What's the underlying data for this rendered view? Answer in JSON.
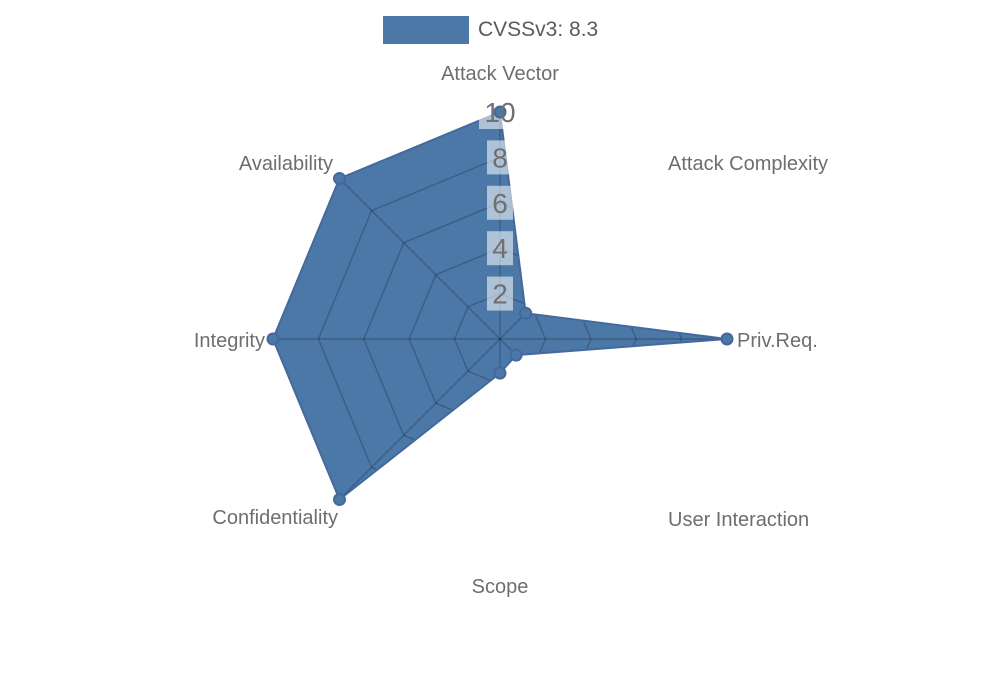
{
  "legend": {
    "label": "CVSSv3: 8.3",
    "swatch_color": "#4c78a8"
  },
  "chart_data": {
    "type": "radar",
    "title": "CVSSv3: 8.3",
    "categories": [
      "Attack Vector",
      "Attack Complexity",
      "Priv.Req.",
      "User Interaction",
      "Scope",
      "Confidentiality",
      "Integrity",
      "Availability"
    ],
    "series": [
      {
        "name": "CVSSv3: 8.3",
        "values": [
          10,
          1.6,
          10,
          1.0,
          1.5,
          10,
          10,
          10
        ]
      }
    ],
    "radial_ticks": [
      2,
      4,
      6,
      8,
      10
    ],
    "rlim": [
      0,
      10
    ],
    "axis_order": "clockwise starting at top",
    "legend_position": "top-center",
    "grid": "polygonal web at each tick, visible only within the filled series area",
    "markers": "dot at each vertex",
    "colors": {
      "fill": "#4c78a8",
      "outline": "#44699c",
      "grid_line": "rgba(0,0,0,0.22)",
      "tick_box": "rgba(255,255,255,0.55)",
      "tick_text": "#707070",
      "label_text": "#6e6e6e",
      "legend_text": "#5a5a5a"
    }
  }
}
